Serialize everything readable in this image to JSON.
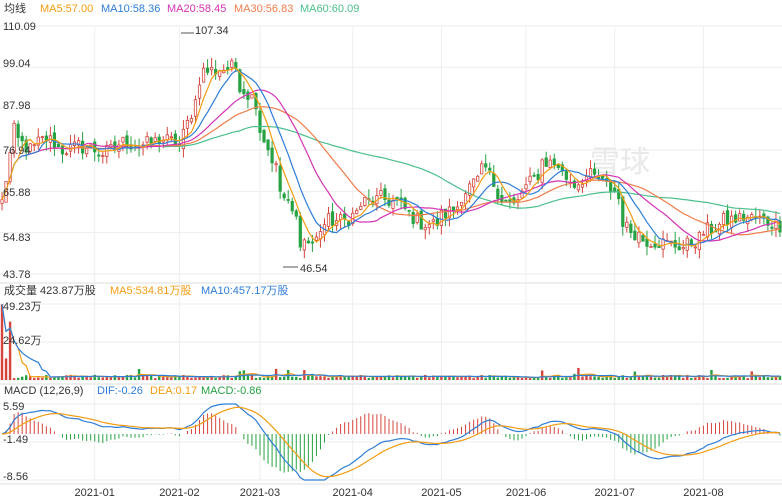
{
  "colors": {
    "up": "#d6453d",
    "down": "#26a243",
    "ma5": "#f39c12",
    "ma10": "#2e7dd7",
    "ma20": "#d433b6",
    "ma30": "#f07c4a",
    "ma60": "#4cbf8e",
    "grid": "#eeeeee",
    "dif": "#2e7dd7",
    "dea": "#f39c12"
  },
  "watermark": "雪球",
  "price_header": {
    "title": "均线",
    "ma5": "MA5:57.00",
    "ma10": "MA10:58.36",
    "ma20": "MA20:58.45",
    "ma30": "MA30:56.83",
    "ma60": "MA60:60.09"
  },
  "volume_header": {
    "title": "成交量 423.87万股",
    "ma5": "MA5:534.81万股",
    "ma10": "MA10:457.17万股"
  },
  "macd_header": {
    "title": "MACD (12,26,9)",
    "dif": "DIF:-0.26",
    "dea": "DEA:0.17",
    "macd": "MACD:-0.86"
  },
  "chart_data": [
    {
      "type": "candlestick",
      "panel": "price",
      "ylim": [
        43.78,
        110.09
      ],
      "y_ticks": [
        "110.09",
        "99.04",
        "87.98",
        "76.94",
        "65.88",
        "54.83",
        "43.78"
      ],
      "annotations": {
        "high": "107.34",
        "low": "46.54"
      },
      "anchors": [
        [
          "2020-12-01",
          63
        ],
        [
          "2020-12-04",
          82
        ],
        [
          "2020-12-10",
          77
        ],
        [
          "2020-12-16",
          80
        ],
        [
          "2020-12-22",
          77
        ],
        [
          "2020-12-28",
          78
        ],
        [
          "2021-01-05",
          76
        ],
        [
          "2021-01-12",
          79
        ],
        [
          "2021-01-18",
          78
        ],
        [
          "2021-01-25",
          80
        ],
        [
          "2021-02-01",
          78
        ],
        [
          "2021-02-05",
          90
        ],
        [
          "2021-02-09",
          98
        ],
        [
          "2021-02-19",
          99
        ],
        [
          "2021-02-23",
          93
        ],
        [
          "2021-02-26",
          90
        ],
        [
          "2021-03-02",
          80
        ],
        [
          "2021-03-05",
          72
        ],
        [
          "2021-03-10",
          62
        ],
        [
          "2021-03-15",
          53
        ],
        [
          "2021-03-18",
          52
        ],
        [
          "2021-03-24",
          58
        ],
        [
          "2021-03-30",
          58
        ],
        [
          "2021-04-06",
          63
        ],
        [
          "2021-04-12",
          64
        ],
        [
          "2021-04-19",
          62
        ],
        [
          "2021-04-23",
          58
        ],
        [
          "2021-04-29",
          57
        ],
        [
          "2021-05-06",
          61
        ],
        [
          "2021-05-12",
          67
        ],
        [
          "2021-05-18",
          72
        ],
        [
          "2021-05-21",
          66
        ],
        [
          "2021-05-27",
          62
        ],
        [
          "2021-06-01",
          67
        ],
        [
          "2021-06-07",
          74
        ],
        [
          "2021-06-11",
          73
        ],
        [
          "2021-06-17",
          68
        ],
        [
          "2021-06-23",
          70
        ],
        [
          "2021-06-28",
          68
        ],
        [
          "2021-07-01",
          66
        ],
        [
          "2021-07-06",
          56
        ],
        [
          "2021-07-12",
          53
        ],
        [
          "2021-07-19",
          52
        ],
        [
          "2021-07-26",
          51
        ],
        [
          "2021-08-02",
          55
        ],
        [
          "2021-08-09",
          58
        ],
        [
          "2021-08-16",
          59
        ],
        [
          "2021-08-23",
          58
        ],
        [
          "2021-08-27",
          57
        ]
      ],
      "ma_last": {
        "MA5": 57.0,
        "MA10": 58.36,
        "MA20": 58.45,
        "MA30": 56.83,
        "MA60": 60.09
      }
    },
    {
      "type": "bar",
      "panel": "volume",
      "unit": "万股",
      "ylim": [
        0,
        49.23
      ],
      "y_ticks": [
        "49.23万",
        "24.62万"
      ],
      "last": 423.87,
      "ma_last": {
        "MA5": 534.81,
        "MA10": 457.17
      }
    },
    {
      "type": "bar+line",
      "panel": "macd",
      "ylim": [
        -8.56,
        5.59
      ],
      "y_ticks": [
        "5.59",
        "-1.49",
        "-8.56"
      ],
      "last": {
        "DIF": -0.26,
        "DEA": 0.17,
        "MACD": -0.86
      }
    }
  ],
  "x_ticks": [
    {
      "label": "2021-01",
      "date": "2021-01-01"
    },
    {
      "label": "2021-02",
      "date": "2021-02-01"
    },
    {
      "label": "2021-03",
      "date": "2021-03-01"
    },
    {
      "label": "2021-04",
      "date": "2021-04-01"
    },
    {
      "label": "2021-05",
      "date": "2021-05-01"
    },
    {
      "label": "2021-06",
      "date": "2021-06-01"
    },
    {
      "label": "2021-07",
      "date": "2021-07-01"
    },
    {
      "label": "2021-08",
      "date": "2021-08-01"
    }
  ]
}
